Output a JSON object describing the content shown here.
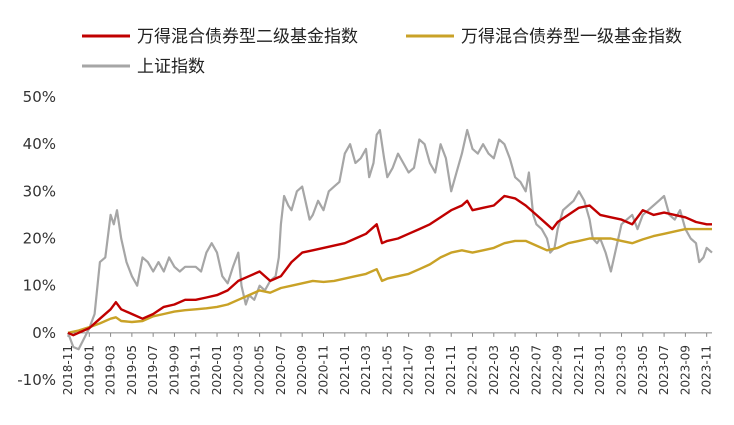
{
  "chart_data": {
    "type": "line",
    "title": "",
    "xlabel": "",
    "ylabel": "",
    "ylim": [
      -10,
      50
    ],
    "y_ticks": [
      "50%",
      "40%",
      "30%",
      "20%",
      "10%",
      "0%",
      "-10%"
    ],
    "y_tick_values": [
      50,
      40,
      30,
      20,
      10,
      0,
      -10
    ],
    "x_ticks": [
      "2018-11",
      "2019-01",
      "2019-03",
      "2019-05",
      "2019-07",
      "2019-09",
      "2019-11",
      "2020-01",
      "2020-03",
      "2020-05",
      "2020-07",
      "2020-09",
      "2020-11",
      "2021-01",
      "2021-03",
      "2021-05",
      "2021-07",
      "2021-09",
      "2021-11",
      "2022-01",
      "2022-03",
      "2022-05",
      "2022-07",
      "2022-09",
      "2022-11",
      "2023-01",
      "2023-03",
      "2023-05",
      "2023-07",
      "2023-09",
      "2023-11"
    ],
    "x_range_months": [
      0,
      60.5
    ],
    "legend_position": "top-left",
    "series": [
      {
        "name": "万得混合债券型二级基金指数",
        "color": "#c00000",
        "points": [
          [
            0,
            0
          ],
          [
            0.5,
            -0.5
          ],
          [
            1,
            0
          ],
          [
            2,
            1
          ],
          [
            3,
            3
          ],
          [
            4,
            5
          ],
          [
            4.5,
            6.5
          ],
          [
            5,
            5
          ],
          [
            6,
            4
          ],
          [
            7,
            3
          ],
          [
            8,
            4
          ],
          [
            9,
            5.5
          ],
          [
            10,
            6
          ],
          [
            11,
            7
          ],
          [
            12,
            7
          ],
          [
            13,
            7.5
          ],
          [
            14,
            8
          ],
          [
            15,
            9
          ],
          [
            16,
            11
          ],
          [
            17,
            12
          ],
          [
            18,
            13
          ],
          [
            19,
            11
          ],
          [
            20,
            12
          ],
          [
            21,
            15
          ],
          [
            22,
            17
          ],
          [
            23,
            17.5
          ],
          [
            24,
            18
          ],
          [
            25,
            18.5
          ],
          [
            26,
            19
          ],
          [
            27,
            20
          ],
          [
            28,
            21
          ],
          [
            29,
            23
          ],
          [
            29.5,
            19
          ],
          [
            30,
            19.5
          ],
          [
            31,
            20
          ],
          [
            32,
            21
          ],
          [
            33,
            22
          ],
          [
            34,
            23
          ],
          [
            35,
            24.5
          ],
          [
            36,
            26
          ],
          [
            37,
            27
          ],
          [
            37.5,
            28
          ],
          [
            38,
            26
          ],
          [
            39,
            26.5
          ],
          [
            40,
            27
          ],
          [
            41,
            29
          ],
          [
            42,
            28.5
          ],
          [
            43,
            27
          ],
          [
            44,
            25
          ],
          [
            45,
            23
          ],
          [
            45.5,
            22
          ],
          [
            46,
            23.5
          ],
          [
            47,
            25
          ],
          [
            48,
            26.5
          ],
          [
            49,
            27
          ],
          [
            50,
            25
          ],
          [
            51,
            24.5
          ],
          [
            52,
            24
          ],
          [
            53,
            23
          ],
          [
            54,
            26
          ],
          [
            55,
            25
          ],
          [
            56,
            25.5
          ],
          [
            57,
            25
          ],
          [
            58,
            24.5
          ],
          [
            59,
            23.5
          ],
          [
            60,
            23
          ],
          [
            60.5,
            23
          ]
        ]
      },
      {
        "name": "万得混合债券型一级基金指数",
        "color": "#c9a227",
        "points": [
          [
            0,
            0
          ],
          [
            1,
            0.5
          ],
          [
            2,
            1.2
          ],
          [
            3,
            2
          ],
          [
            4,
            3
          ],
          [
            4.5,
            3.3
          ],
          [
            5,
            2.5
          ],
          [
            6,
            2.3
          ],
          [
            7,
            2.5
          ],
          [
            8,
            3.5
          ],
          [
            9,
            4
          ],
          [
            10,
            4.5
          ],
          [
            11,
            4.8
          ],
          [
            12,
            5
          ],
          [
            13,
            5.2
          ],
          [
            14,
            5.5
          ],
          [
            15,
            6
          ],
          [
            16,
            7
          ],
          [
            17,
            8
          ],
          [
            18,
            9
          ],
          [
            19,
            8.5
          ],
          [
            20,
            9.5
          ],
          [
            21,
            10
          ],
          [
            22,
            10.5
          ],
          [
            23,
            11
          ],
          [
            24,
            10.8
          ],
          [
            25,
            11
          ],
          [
            26,
            11.5
          ],
          [
            27,
            12
          ],
          [
            28,
            12.5
          ],
          [
            29,
            13.5
          ],
          [
            29.5,
            11
          ],
          [
            30,
            11.5
          ],
          [
            31,
            12
          ],
          [
            32,
            12.5
          ],
          [
            33,
            13.5
          ],
          [
            34,
            14.5
          ],
          [
            35,
            16
          ],
          [
            36,
            17
          ],
          [
            37,
            17.5
          ],
          [
            38,
            17
          ],
          [
            39,
            17.5
          ],
          [
            40,
            18
          ],
          [
            41,
            19
          ],
          [
            42,
            19.5
          ],
          [
            43,
            19.5
          ],
          [
            44,
            18.5
          ],
          [
            45,
            17.5
          ],
          [
            46,
            18
          ],
          [
            47,
            19
          ],
          [
            48,
            19.5
          ],
          [
            49,
            20
          ],
          [
            50,
            20
          ],
          [
            51,
            20
          ],
          [
            52,
            19.5
          ],
          [
            53,
            19
          ],
          [
            54,
            19.8
          ],
          [
            55,
            20.5
          ],
          [
            56,
            21
          ],
          [
            57,
            21.5
          ],
          [
            58,
            22
          ],
          [
            59,
            22
          ],
          [
            60,
            22
          ],
          [
            60.5,
            22
          ]
        ]
      },
      {
        "name": "上证指数",
        "color": "#a6a6a6",
        "points": [
          [
            0,
            0
          ],
          [
            0.5,
            -3
          ],
          [
            1,
            -3.5
          ],
          [
            2,
            1
          ],
          [
            2.5,
            4
          ],
          [
            3,
            15
          ],
          [
            3.5,
            16
          ],
          [
            4,
            25
          ],
          [
            4.3,
            23
          ],
          [
            4.6,
            26
          ],
          [
            5,
            20
          ],
          [
            5.5,
            15
          ],
          [
            6,
            12
          ],
          [
            6.5,
            10
          ],
          [
            7,
            16
          ],
          [
            7.5,
            15
          ],
          [
            8,
            13
          ],
          [
            8.5,
            15
          ],
          [
            9,
            13
          ],
          [
            9.5,
            16
          ],
          [
            10,
            14
          ],
          [
            10.5,
            13
          ],
          [
            11,
            14
          ],
          [
            12,
            14
          ],
          [
            12.5,
            13
          ],
          [
            13,
            17
          ],
          [
            13.5,
            19
          ],
          [
            14,
            17
          ],
          [
            14.5,
            12
          ],
          [
            15,
            10.5
          ],
          [
            15.5,
            14
          ],
          [
            16,
            17
          ],
          [
            16.3,
            10
          ],
          [
            16.7,
            6
          ],
          [
            17,
            8
          ],
          [
            17.5,
            7
          ],
          [
            18,
            10
          ],
          [
            18.5,
            9
          ],
          [
            19,
            11
          ],
          [
            19.5,
            12
          ],
          [
            19.8,
            16
          ],
          [
            20,
            23
          ],
          [
            20.3,
            29
          ],
          [
            20.7,
            27
          ],
          [
            21,
            26
          ],
          [
            21.5,
            30
          ],
          [
            22,
            31
          ],
          [
            22.3,
            28
          ],
          [
            22.7,
            24
          ],
          [
            23,
            25
          ],
          [
            23.5,
            28
          ],
          [
            24,
            26
          ],
          [
            24.5,
            30
          ],
          [
            25,
            31
          ],
          [
            25.5,
            32
          ],
          [
            26,
            38
          ],
          [
            26.5,
            40
          ],
          [
            27,
            36
          ],
          [
            27.5,
            37
          ],
          [
            28,
            39
          ],
          [
            28.3,
            33
          ],
          [
            28.7,
            36
          ],
          [
            29,
            42
          ],
          [
            29.3,
            43
          ],
          [
            29.7,
            37
          ],
          [
            30,
            33
          ],
          [
            30.5,
            35
          ],
          [
            31,
            38
          ],
          [
            31.5,
            36
          ],
          [
            32,
            34
          ],
          [
            32.5,
            35
          ],
          [
            33,
            41
          ],
          [
            33.5,
            40
          ],
          [
            34,
            36
          ],
          [
            34.5,
            34
          ],
          [
            35,
            40
          ],
          [
            35.5,
            37
          ],
          [
            36,
            30
          ],
          [
            36.5,
            34
          ],
          [
            37,
            38
          ],
          [
            37.5,
            43
          ],
          [
            38,
            39
          ],
          [
            38.5,
            38
          ],
          [
            39,
            40
          ],
          [
            39.5,
            38
          ],
          [
            40,
            37
          ],
          [
            40.5,
            41
          ],
          [
            41,
            40
          ],
          [
            41.5,
            37
          ],
          [
            42,
            33
          ],
          [
            42.5,
            32
          ],
          [
            43,
            30
          ],
          [
            43.3,
            34
          ],
          [
            43.7,
            25
          ],
          [
            44,
            23
          ],
          [
            44.5,
            22
          ],
          [
            45,
            20
          ],
          [
            45.3,
            17
          ],
          [
            45.7,
            18
          ],
          [
            46,
            22
          ],
          [
            46.5,
            26
          ],
          [
            47,
            27
          ],
          [
            47.5,
            28
          ],
          [
            48,
            30
          ],
          [
            48.5,
            28
          ],
          [
            49,
            24
          ],
          [
            49.3,
            20
          ],
          [
            49.7,
            19
          ],
          [
            50,
            20
          ],
          [
            50.5,
            17
          ],
          [
            51,
            13
          ],
          [
            51.5,
            18
          ],
          [
            52,
            23
          ],
          [
            52.5,
            24
          ],
          [
            53,
            25
          ],
          [
            53.5,
            22
          ],
          [
            54,
            25
          ],
          [
            54.5,
            26
          ],
          [
            55,
            27
          ],
          [
            55.5,
            28
          ],
          [
            56,
            29
          ],
          [
            56.5,
            25
          ],
          [
            57,
            24
          ],
          [
            57.5,
            26
          ],
          [
            58,
            22
          ],
          [
            58.5,
            20
          ],
          [
            59,
            19
          ],
          [
            59.3,
            15
          ],
          [
            59.7,
            16
          ],
          [
            60,
            18
          ],
          [
            60.5,
            17
          ]
        ]
      }
    ]
  }
}
